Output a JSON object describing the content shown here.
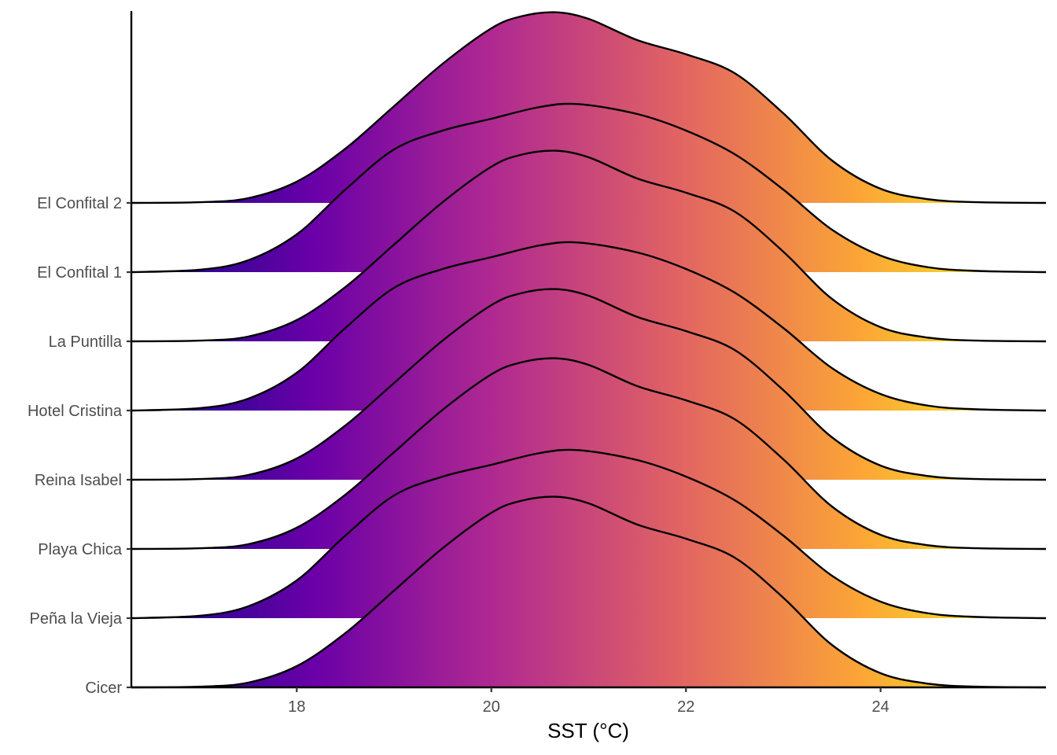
{
  "chart_data": {
    "type": "ridgeline",
    "title": "",
    "xlabel": "SST (°C)",
    "ylabel": "",
    "xlim": [
      16.3,
      25.7
    ],
    "x_ticks": [
      18,
      20,
      22,
      24
    ],
    "x_tick_labels": [
      "18",
      "20",
      "22",
      "24"
    ],
    "fill": "horizontal gradient, plasma palette",
    "gradient_colors": [
      "#0d0887",
      "#6a00a8",
      "#b12a90",
      "#e16462",
      "#fca636",
      "#f0f921"
    ],
    "grid": false,
    "legend": "none",
    "categories": [
      "Cicer",
      "Peña la Vieja",
      "Playa Chica",
      "Reina Isabel",
      "Hotel Cristina",
      "La Puntilla",
      "El Confital 1",
      "El Confital 2"
    ],
    "series": [
      {
        "name": "Cicer",
        "x": [
          17.0,
          17.5,
          18.0,
          18.5,
          19.0,
          19.5,
          20.0,
          20.3,
          20.65,
          21.0,
          21.5,
          22.0,
          22.5,
          23.0,
          23.5,
          24.0,
          24.5,
          25.0,
          25.7
        ],
        "density": [
          0.003,
          0.02,
          0.09,
          0.23,
          0.41,
          0.59,
          0.74,
          0.79,
          0.808,
          0.78,
          0.69,
          0.63,
          0.55,
          0.38,
          0.18,
          0.06,
          0.015,
          0.003,
          0.0
        ]
      },
      {
        "name": "Peña la Vieja",
        "x": [
          16.3,
          17.0,
          17.5,
          18.0,
          18.5,
          19.0,
          19.5,
          20.0,
          20.5,
          20.9,
          21.5,
          22.0,
          22.5,
          23.0,
          23.5,
          24.0,
          24.5,
          25.0,
          25.7
        ],
        "density": [
          0.0,
          0.01,
          0.05,
          0.16,
          0.35,
          0.52,
          0.6,
          0.65,
          0.7,
          0.712,
          0.67,
          0.6,
          0.5,
          0.35,
          0.18,
          0.07,
          0.02,
          0.005,
          0.0
        ]
      },
      {
        "name": "Playa Chica",
        "x": [
          16.3,
          17.0,
          17.5,
          18.0,
          18.5,
          19.0,
          19.5,
          20.0,
          20.3,
          20.65,
          21.0,
          21.5,
          22.0,
          22.5,
          23.0,
          23.5,
          24.0,
          24.5,
          25.0,
          25.7
        ],
        "density": [
          0.0,
          0.003,
          0.02,
          0.09,
          0.23,
          0.41,
          0.59,
          0.74,
          0.79,
          0.808,
          0.78,
          0.69,
          0.63,
          0.55,
          0.38,
          0.18,
          0.06,
          0.015,
          0.003,
          0.0
        ]
      },
      {
        "name": "Reina Isabel",
        "x": [
          16.3,
          17.0,
          17.5,
          18.0,
          18.5,
          19.0,
          19.5,
          20.0,
          20.3,
          20.65,
          21.0,
          21.5,
          22.0,
          22.5,
          23.0,
          23.5,
          24.0,
          24.5,
          25.0,
          25.7
        ],
        "density": [
          0.0,
          0.003,
          0.02,
          0.09,
          0.23,
          0.41,
          0.59,
          0.74,
          0.79,
          0.808,
          0.78,
          0.69,
          0.63,
          0.55,
          0.38,
          0.18,
          0.06,
          0.015,
          0.003,
          0.0
        ]
      },
      {
        "name": "Hotel Cristina",
        "x": [
          16.3,
          17.0,
          17.5,
          18.0,
          18.5,
          19.0,
          19.5,
          20.0,
          20.5,
          20.9,
          21.5,
          22.0,
          22.5,
          23.0,
          23.5,
          24.0,
          24.5,
          25.0,
          25.7
        ],
        "density": [
          0.0,
          0.01,
          0.05,
          0.16,
          0.35,
          0.52,
          0.6,
          0.65,
          0.7,
          0.712,
          0.67,
          0.6,
          0.5,
          0.35,
          0.18,
          0.07,
          0.02,
          0.005,
          0.0
        ]
      },
      {
        "name": "La Puntilla",
        "x": [
          16.3,
          17.0,
          17.5,
          18.0,
          18.5,
          19.0,
          19.5,
          20.0,
          20.3,
          20.65,
          21.0,
          21.5,
          22.0,
          22.5,
          23.0,
          23.5,
          24.0,
          24.5,
          25.0,
          25.7
        ],
        "density": [
          0.0,
          0.003,
          0.02,
          0.09,
          0.23,
          0.41,
          0.59,
          0.74,
          0.79,
          0.808,
          0.78,
          0.69,
          0.63,
          0.55,
          0.38,
          0.18,
          0.06,
          0.015,
          0.003,
          0.0
        ]
      },
      {
        "name": "El Confital 1",
        "x": [
          16.3,
          17.0,
          17.5,
          18.0,
          18.5,
          19.0,
          19.5,
          20.0,
          20.5,
          20.9,
          21.5,
          22.0,
          22.5,
          23.0,
          23.5,
          24.0,
          24.5,
          25.0,
          25.7
        ],
        "density": [
          0.0,
          0.01,
          0.05,
          0.16,
          0.35,
          0.52,
          0.6,
          0.65,
          0.7,
          0.712,
          0.67,
          0.6,
          0.5,
          0.35,
          0.18,
          0.07,
          0.02,
          0.005,
          0.0
        ]
      },
      {
        "name": "El Confital 2",
        "x": [
          16.3,
          17.0,
          17.5,
          18.0,
          18.5,
          19.0,
          19.5,
          20.0,
          20.3,
          20.65,
          21.0,
          21.5,
          22.0,
          22.5,
          23.0,
          23.5,
          24.0,
          24.5,
          25.0,
          25.7
        ],
        "density": [
          0.0,
          0.003,
          0.02,
          0.09,
          0.23,
          0.41,
          0.59,
          0.74,
          0.79,
          0.808,
          0.78,
          0.69,
          0.63,
          0.55,
          0.38,
          0.18,
          0.06,
          0.015,
          0.003,
          0.0
        ]
      }
    ]
  }
}
